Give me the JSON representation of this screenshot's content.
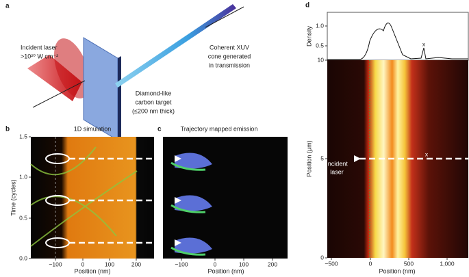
{
  "panel_a": {
    "label": "a",
    "laser": [
      "Incident laser",
      ">10²⁰ W cm⁻²"
    ],
    "xuv": [
      "Coherent XUV",
      "cone generated",
      "in transmission"
    ],
    "target": [
      "Diamond-like",
      "carbon target",
      "(≤200 nm thick)"
    ]
  },
  "panel_b": {
    "label": "b",
    "title": "1D simulation",
    "x_label": "Position (nm)",
    "y_label": "Time (cycles)",
    "x_ticks": [
      "−100",
      "0",
      "100",
      "200"
    ],
    "y_ticks": [
      "0.0",
      "0.5",
      "1.0",
      "1.5"
    ]
  },
  "panel_c": {
    "label": "c",
    "title": "Trajectory mapped emission",
    "x_label": "Position (nm)",
    "x_ticks": [
      "−100",
      "0",
      "100",
      "200"
    ]
  },
  "panel_d": {
    "label": "d",
    "top_y_label": "Density",
    "top_y_ticks": [
      "0.5",
      "1.0"
    ],
    "y_label": "Position (μm)",
    "y_ticks": [
      "0",
      "5",
      "10"
    ],
    "x_label": "Position (nm)",
    "x_ticks": [
      "−500",
      "0",
      "500",
      "1,000"
    ],
    "annotation": [
      "Incident",
      "laser"
    ],
    "marks": [
      "x",
      "x"
    ]
  }
}
